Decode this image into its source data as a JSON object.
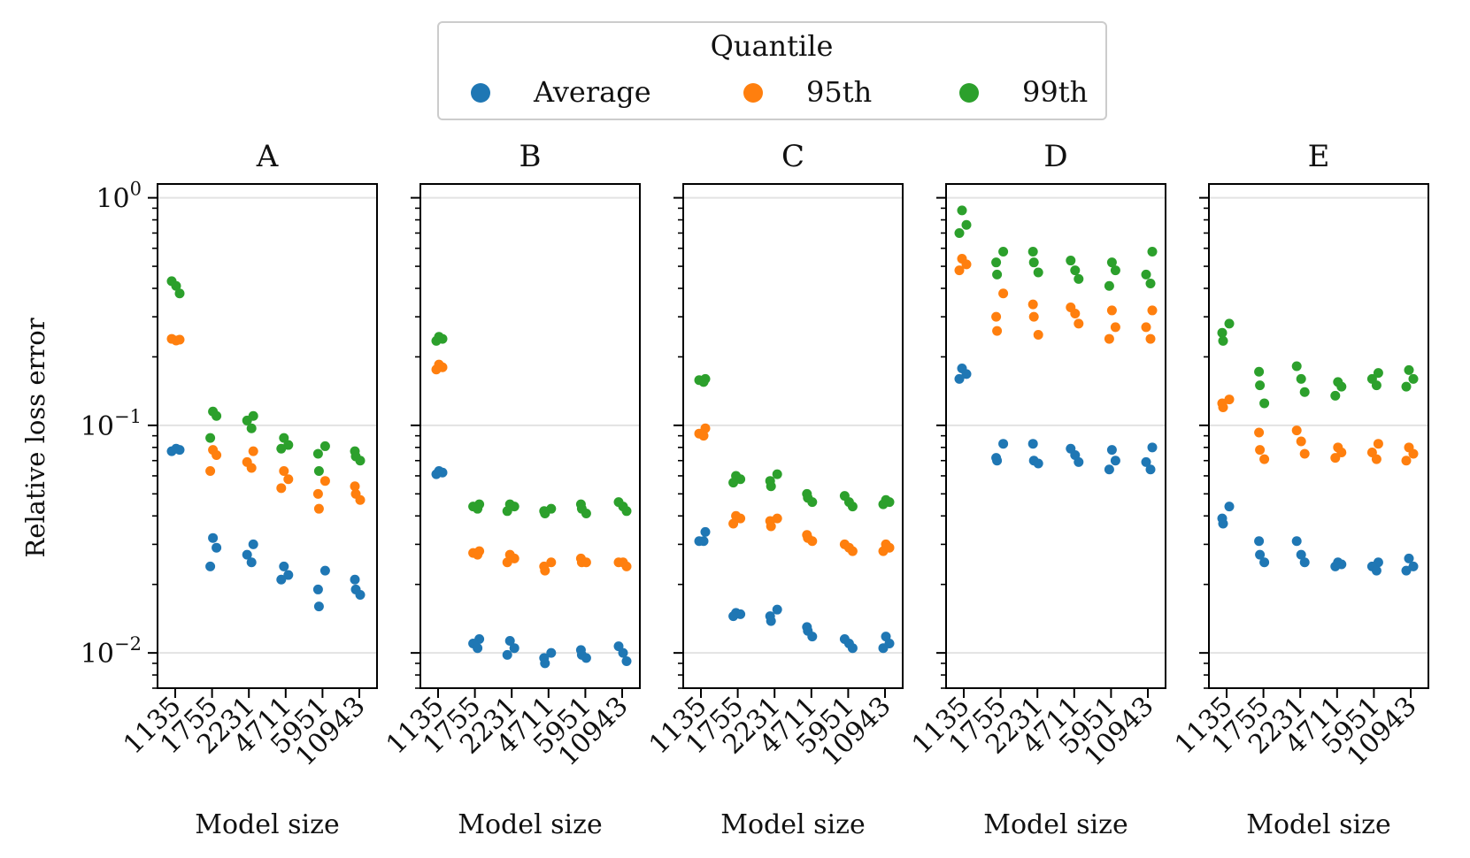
{
  "legend": {
    "title": "Quantile",
    "entries": [
      {
        "label": "Average",
        "color": "#1f77b4"
      },
      {
        "label": "95th",
        "color": "#ff7f0e"
      },
      {
        "label": "99th",
        "color": "#2ca02c"
      }
    ]
  },
  "ylabel": "Relative loss error",
  "xlabel": "Model size",
  "y_ticks": [
    {
      "value": 1,
      "base": "10",
      "exp": "0"
    },
    {
      "value": 0.1,
      "base": "10",
      "exp": "−1"
    },
    {
      "value": 0.01,
      "base": "10",
      "exp": "−2"
    }
  ],
  "chart_data": {
    "type": "scatter",
    "yscale": "log",
    "ylim": [
      0.007,
      1.15
    ],
    "categories": [
      "1135",
      "1755",
      "2231",
      "4711",
      "5951",
      "10943"
    ],
    "series_names": [
      "Average",
      "95th",
      "99th"
    ],
    "panels": [
      {
        "title": "A",
        "series": [
          {
            "name": "Average",
            "values": [
              [
                0.077,
                0.079,
                0.078
              ],
              [
                0.032,
                0.029,
                0.024
              ],
              [
                0.03,
                0.027,
                0.025
              ],
              [
                0.024,
                0.022,
                0.021
              ],
              [
                0.023,
                0.019,
                0.016
              ],
              [
                0.021,
                0.019,
                0.018
              ]
            ]
          },
          {
            "name": "95th",
            "values": [
              [
                0.24,
                0.236,
                0.238
              ],
              [
                0.078,
                0.074,
                0.063
              ],
              [
                0.077,
                0.069,
                0.065
              ],
              [
                0.063,
                0.058,
                0.053
              ],
              [
                0.057,
                0.05,
                0.043
              ],
              [
                0.054,
                0.05,
                0.047
              ]
            ]
          },
          {
            "name": "99th",
            "values": [
              [
                0.43,
                0.41,
                0.38
              ],
              [
                0.115,
                0.11,
                0.088
              ],
              [
                0.11,
                0.105,
                0.097
              ],
              [
                0.088,
                0.082,
                0.079
              ],
              [
                0.081,
                0.075,
                0.063
              ],
              [
                0.077,
                0.073,
                0.07
              ]
            ]
          }
        ]
      },
      {
        "title": "B",
        "series": [
          {
            "name": "Average",
            "values": [
              [
                0.063,
                0.062,
                0.061
              ],
              [
                0.0115,
                0.011,
                0.0105
              ],
              [
                0.0113,
                0.0105,
                0.0098
              ],
              [
                0.01,
                0.0095,
                0.009
              ],
              [
                0.0103,
                0.0098,
                0.0095
              ],
              [
                0.0107,
                0.01,
                0.0092
              ]
            ]
          },
          {
            "name": "95th",
            "values": [
              [
                0.185,
                0.18,
                0.176
              ],
              [
                0.028,
                0.0275,
                0.027
              ],
              [
                0.027,
                0.026,
                0.025
              ],
              [
                0.025,
                0.024,
                0.023
              ],
              [
                0.026,
                0.025,
                0.025
              ],
              [
                0.025,
                0.025,
                0.024
              ]
            ]
          },
          {
            "name": "99th",
            "values": [
              [
                0.245,
                0.24,
                0.235
              ],
              [
                0.045,
                0.044,
                0.043
              ],
              [
                0.045,
                0.044,
                0.042
              ],
              [
                0.043,
                0.042,
                0.041
              ],
              [
                0.045,
                0.043,
                0.041
              ],
              [
                0.046,
                0.044,
                0.042
              ]
            ]
          }
        ]
      },
      {
        "title": "C",
        "series": [
          {
            "name": "Average",
            "values": [
              [
                0.034,
                0.031,
                0.031
              ],
              [
                0.015,
                0.0148,
                0.0145
              ],
              [
                0.0155,
                0.0145,
                0.0138
              ],
              [
                0.013,
                0.0125,
                0.0118
              ],
              [
                0.0115,
                0.011,
                0.0105
              ],
              [
                0.0118,
                0.011,
                0.0105
              ]
            ]
          },
          {
            "name": "95th",
            "values": [
              [
                0.097,
                0.092,
                0.09
              ],
              [
                0.04,
                0.039,
                0.037
              ],
              [
                0.039,
                0.038,
                0.036
              ],
              [
                0.033,
                0.032,
                0.031
              ],
              [
                0.03,
                0.029,
                0.028
              ],
              [
                0.03,
                0.029,
                0.028
              ]
            ]
          },
          {
            "name": "99th",
            "values": [
              [
                0.16,
                0.158,
                0.155
              ],
              [
                0.06,
                0.058,
                0.056
              ],
              [
                0.061,
                0.057,
                0.054
              ],
              [
                0.05,
                0.048,
                0.046
              ],
              [
                0.049,
                0.046,
                0.044
              ],
              [
                0.047,
                0.046,
                0.045
              ]
            ]
          }
        ]
      },
      {
        "title": "D",
        "series": [
          {
            "name": "Average",
            "values": [
              [
                0.178,
                0.168,
                0.16
              ],
              [
                0.083,
                0.072,
                0.07
              ],
              [
                0.083,
                0.07,
                0.068
              ],
              [
                0.079,
                0.074,
                0.069
              ],
              [
                0.078,
                0.07,
                0.064
              ],
              [
                0.08,
                0.069,
                0.064
              ]
            ]
          },
          {
            "name": "95th",
            "values": [
              [
                0.54,
                0.51,
                0.48
              ],
              [
                0.38,
                0.3,
                0.26
              ],
              [
                0.34,
                0.3,
                0.25
              ],
              [
                0.33,
                0.31,
                0.28
              ],
              [
                0.32,
                0.27,
                0.24
              ],
              [
                0.32,
                0.27,
                0.24
              ]
            ]
          },
          {
            "name": "99th",
            "values": [
              [
                0.88,
                0.76,
                0.7
              ],
              [
                0.58,
                0.52,
                0.46
              ],
              [
                0.58,
                0.52,
                0.47
              ],
              [
                0.53,
                0.48,
                0.44
              ],
              [
                0.52,
                0.48,
                0.41
              ],
              [
                0.58,
                0.46,
                0.42
              ]
            ]
          }
        ]
      },
      {
        "title": "E",
        "series": [
          {
            "name": "Average",
            "values": [
              [
                0.044,
                0.039,
                0.037
              ],
              [
                0.031,
                0.027,
                0.025
              ],
              [
                0.031,
                0.027,
                0.025
              ],
              [
                0.025,
                0.0245,
                0.024
              ],
              [
                0.025,
                0.024,
                0.023
              ],
              [
                0.026,
                0.024,
                0.023
              ]
            ]
          },
          {
            "name": "95th",
            "values": [
              [
                0.13,
                0.125,
                0.12
              ],
              [
                0.093,
                0.078,
                0.071
              ],
              [
                0.095,
                0.085,
                0.075
              ],
              [
                0.08,
                0.076,
                0.072
              ],
              [
                0.083,
                0.076,
                0.071
              ],
              [
                0.08,
                0.075,
                0.07
              ]
            ]
          },
          {
            "name": "99th",
            "values": [
              [
                0.28,
                0.255,
                0.235
              ],
              [
                0.172,
                0.15,
                0.125
              ],
              [
                0.182,
                0.16,
                0.14
              ],
              [
                0.155,
                0.148,
                0.135
              ],
              [
                0.17,
                0.16,
                0.15
              ],
              [
                0.175,
                0.16,
                0.148
              ]
            ]
          }
        ]
      }
    ]
  }
}
